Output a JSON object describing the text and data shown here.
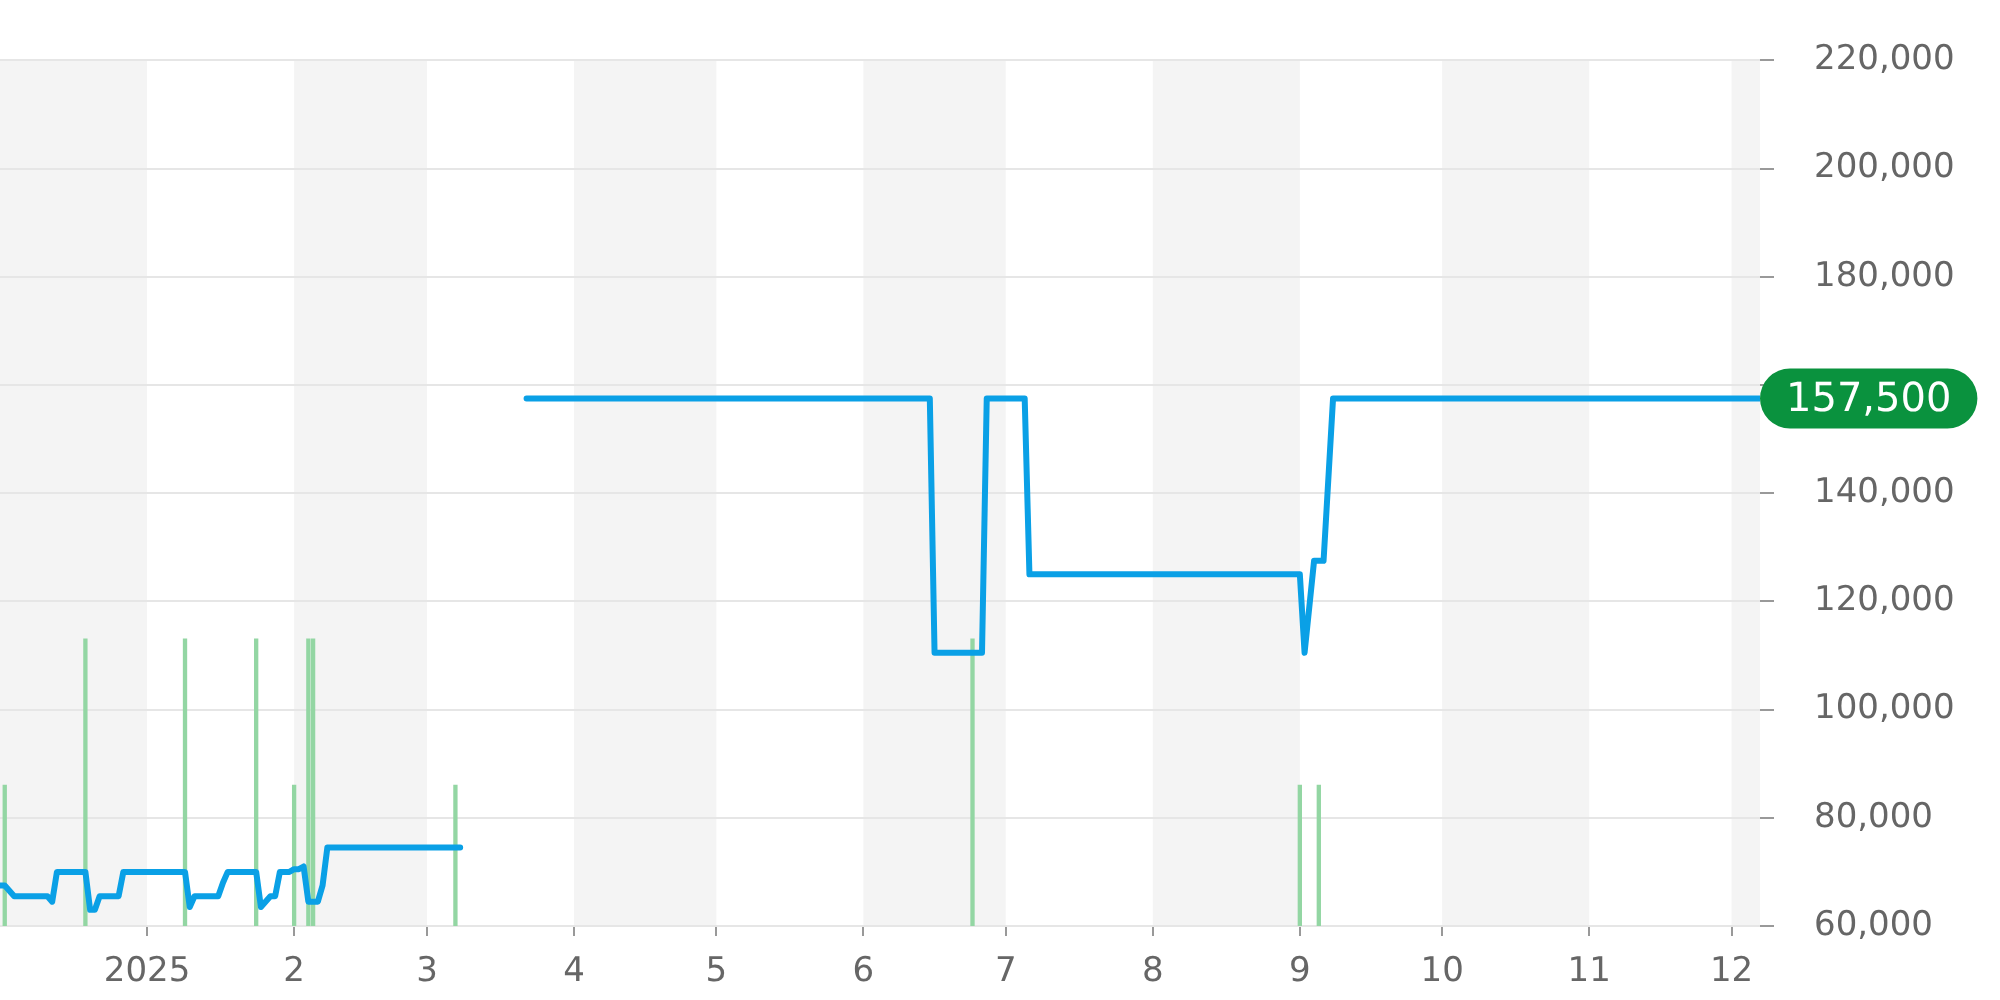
{
  "chart_data": {
    "type": "line",
    "xlim": [
      "2024-12-01",
      "2025-12-07"
    ],
    "xticks": [
      {
        "value": "2025-01-01",
        "label": "2025"
      },
      {
        "value": "2025-02-01",
        "label": "2"
      },
      {
        "value": "2025-03-01",
        "label": "3"
      },
      {
        "value": "2025-04-01",
        "label": "4"
      },
      {
        "value": "2025-05-01",
        "label": "5"
      },
      {
        "value": "2025-06-01",
        "label": "6"
      },
      {
        "value": "2025-07-01",
        "label": "7"
      },
      {
        "value": "2025-08-01",
        "label": "8"
      },
      {
        "value": "2025-09-01",
        "label": "9"
      },
      {
        "value": "2025-10-01",
        "label": "10"
      },
      {
        "value": "2025-11-01",
        "label": "11"
      },
      {
        "value": "2025-12-01",
        "label": "12"
      }
    ],
    "ylim": [
      60000,
      220000
    ],
    "yticks": [
      {
        "value": 60000,
        "label": "60,000"
      },
      {
        "value": 80000,
        "label": "80,000"
      },
      {
        "value": 100000,
        "label": "100,000"
      },
      {
        "value": 120000,
        "label": "120,000"
      },
      {
        "value": 140000,
        "label": "140,000"
      },
      {
        "value": 160000,
        "label": null
      },
      {
        "value": 180000,
        "label": "180,000"
      },
      {
        "value": 200000,
        "label": "200,000"
      },
      {
        "value": 220000,
        "label": "220,000"
      }
    ],
    "grid": "y",
    "legend": false,
    "marker": "none",
    "bands": [
      {
        "axis": "x",
        "from": "2024-12-01",
        "to": "2025-01-01",
        "color": "#f4f4f4"
      },
      {
        "axis": "x",
        "from": "2025-02-01",
        "to": "2025-03-01",
        "color": "#f4f4f4"
      },
      {
        "axis": "x",
        "from": "2025-04-01",
        "to": "2025-05-01",
        "color": "#f4f4f4"
      },
      {
        "axis": "x",
        "from": "2025-06-01",
        "to": "2025-07-01",
        "color": "#f4f4f4"
      },
      {
        "axis": "x",
        "from": "2025-08-01",
        "to": "2025-09-01",
        "color": "#f4f4f4"
      },
      {
        "axis": "x",
        "from": "2025-10-01",
        "to": "2025-11-01",
        "color": "#f4f4f4"
      },
      {
        "axis": "x",
        "from": "2025-12-01",
        "to": "2025-12-07",
        "color": "#f4f4f4"
      }
    ],
    "series": [
      {
        "color": "#0aa0e6",
        "x": [
          "2024-12-01",
          "2024-12-02",
          "2024-12-04",
          "2024-12-11",
          "2024-12-12",
          "2024-12-13",
          "2024-12-19",
          "2024-12-20",
          "2024-12-21",
          "2024-12-22",
          "2024-12-26",
          "2024-12-27",
          "2025-01-09",
          "2025-01-10",
          "2025-01-11",
          "2025-01-16",
          "2025-01-17",
          "2025-01-18",
          "2025-01-24",
          "2025-01-25",
          "2025-01-27",
          "2025-01-28",
          "2025-01-29",
          "2025-01-31",
          "2025-02-01",
          "2025-02-02",
          "2025-02-03",
          "2025-02-04",
          "2025-02-06",
          "2025-02-07",
          "2025-02-08",
          "2025-03-08",
          "2025-03-15",
          "2025-03-22",
          "2025-06-15",
          "2025-06-16",
          "2025-06-26",
          "2025-06-27",
          "2025-07-05",
          "2025-07-06",
          "2025-09-01",
          "2025-09-02",
          "2025-09-04",
          "2025-09-06",
          "2025-09-08",
          "2025-12-07"
        ],
        "values": [
          67500,
          67500,
          65500,
          65500,
          64500,
          70000,
          70000,
          63000,
          63000,
          65500,
          65500,
          70000,
          70000,
          63500,
          65500,
          65500,
          68000,
          70000,
          70000,
          63500,
          65500,
          65500,
          70000,
          70000,
          70500,
          70500,
          71000,
          64500,
          64500,
          67500,
          74500,
          74500,
          null,
          157500,
          157500,
          110500,
          110500,
          157500,
          157500,
          125000,
          125000,
          110500,
          127500,
          127500,
          157500,
          157500
        ]
      },
      {
        "type": "bar",
        "color": "#93d6a3",
        "x": [
          "2024-12-02",
          "2024-12-19",
          "2025-01-09",
          "2025-01-24",
          "2025-02-01",
          "2025-02-04",
          "2025-02-05",
          "2025-03-07",
          "2025-06-24",
          "2025-09-01",
          "2025-09-05"
        ],
        "values": [
          86000,
          113000,
          113000,
          113000,
          86000,
          113000,
          113000,
          86000,
          113000,
          86000,
          86000
        ]
      }
    ],
    "annotations": [
      "157,500"
    ]
  }
}
